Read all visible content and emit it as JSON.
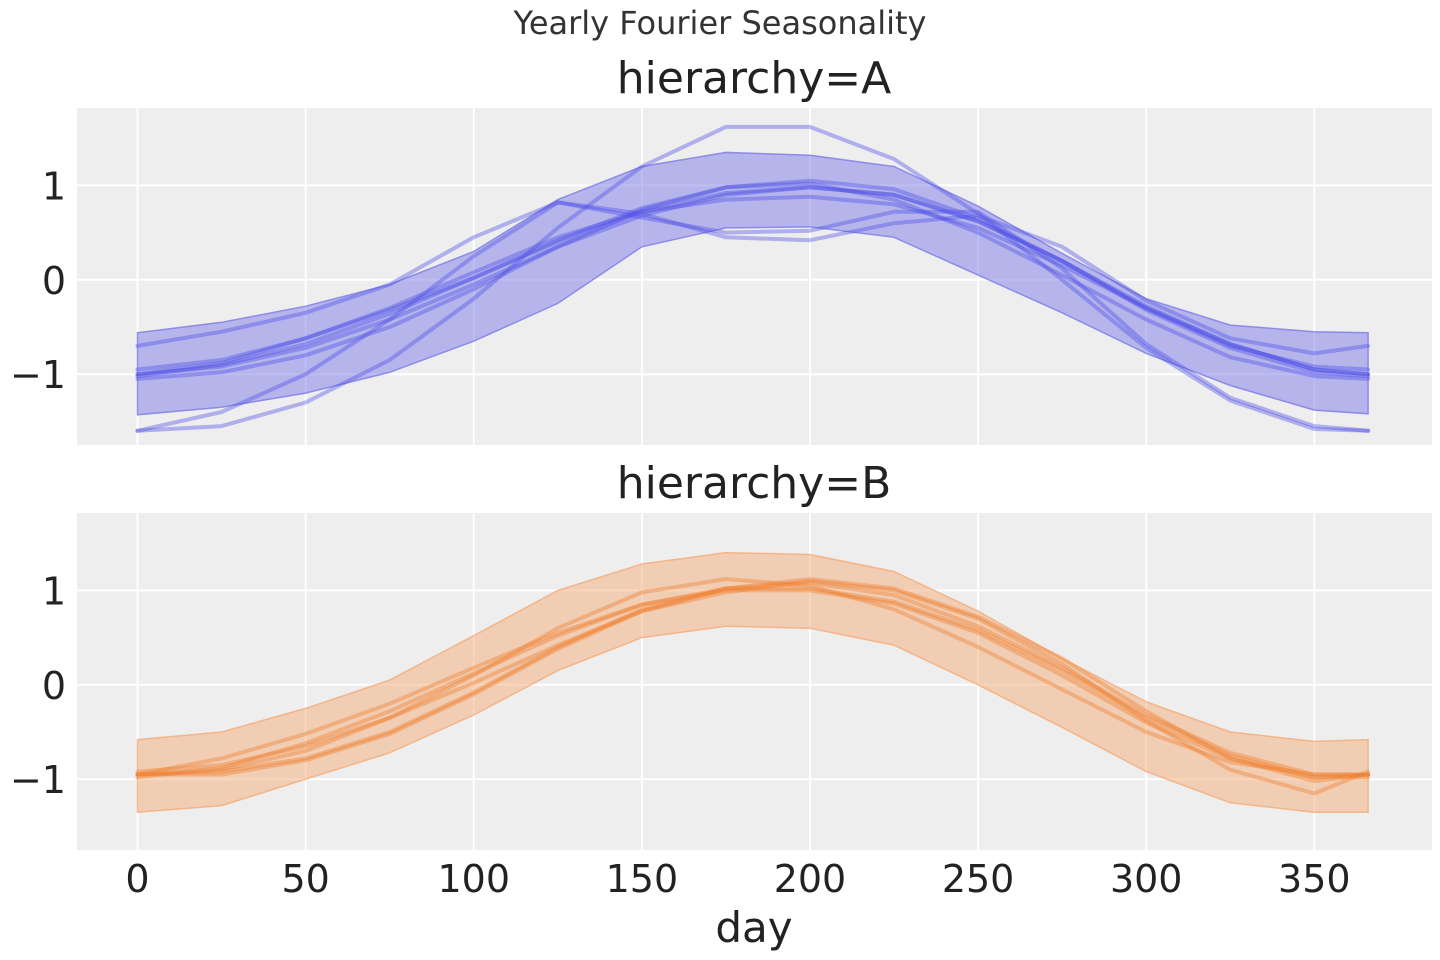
{
  "chart_data": {
    "type": "line",
    "title": "Yearly Fourier Seasonality",
    "xlabel": "day",
    "ylabel": "",
    "xlim": [
      -18,
      385
    ],
    "x_ticks": [
      0,
      50,
      100,
      150,
      200,
      250,
      300,
      350
    ],
    "x_tick_labels": [
      "0",
      "50",
      "100",
      "150",
      "200",
      "250",
      "300",
      "350"
    ],
    "y_ticks": [
      -1,
      0,
      1
    ],
    "y_tick_labels": [
      "−1",
      "0",
      "1"
    ],
    "ylim": [
      -1.75,
      1.82
    ],
    "grid": true,
    "background": "#eeeeee",
    "grid_color": "#ffffff",
    "panels": [
      {
        "title": "hierarchy=A",
        "color": "#5050e8",
        "band_color": "#7b7be8",
        "band": {
          "x": [
            0,
            25,
            50,
            75,
            100,
            125,
            150,
            175,
            200,
            225,
            250,
            275,
            300,
            325,
            350,
            366
          ],
          "lower": [
            -1.43,
            -1.35,
            -1.2,
            -0.98,
            -0.65,
            -0.25,
            0.35,
            0.55,
            0.56,
            0.45,
            0.05,
            -0.35,
            -0.78,
            -1.12,
            -1.38,
            -1.42
          ],
          "upper": [
            -0.56,
            -0.45,
            -0.28,
            -0.05,
            0.3,
            0.85,
            1.2,
            1.35,
            1.32,
            1.2,
            0.78,
            0.28,
            -0.2,
            -0.48,
            -0.55,
            -0.56
          ]
        },
        "samples": [
          {
            "x": [
              0,
              25,
              50,
              75,
              100,
              125,
              150,
              175,
              200,
              225,
              250,
              275,
              300,
              325,
              350,
              366
            ],
            "y": [
              -1.0,
              -0.92,
              -0.72,
              -0.42,
              -0.05,
              0.35,
              0.68,
              0.9,
              0.98,
              0.9,
              0.62,
              0.2,
              -0.28,
              -0.68,
              -0.95,
              -1.0
            ]
          },
          {
            "x": [
              0,
              25,
              50,
              75,
              100,
              125,
              150,
              175,
              200,
              225,
              250,
              275,
              300,
              325,
              350,
              366
            ],
            "y": [
              -1.02,
              -0.9,
              -0.68,
              -0.36,
              0.02,
              0.42,
              0.76,
              0.98,
              1.05,
              0.96,
              0.65,
              0.2,
              -0.32,
              -0.72,
              -0.98,
              -1.02
            ]
          },
          {
            "x": [
              0,
              25,
              50,
              75,
              100,
              125,
              150,
              175,
              200,
              225,
              250,
              275,
              300,
              325,
              350,
              366
            ],
            "y": [
              -1.6,
              -1.55,
              -1.3,
              -0.85,
              -0.2,
              0.55,
              1.2,
              1.62,
              1.62,
              1.28,
              0.7,
              0.0,
              -0.72,
              -1.28,
              -1.58,
              -1.6
            ]
          },
          {
            "x": [
              0,
              25,
              50,
              75,
              100,
              125,
              150,
              175,
              200,
              225,
              250,
              275,
              300,
              325,
              350,
              366
            ],
            "y": [
              -0.7,
              -0.55,
              -0.35,
              -0.05,
              0.45,
              0.82,
              0.7,
              0.45,
              0.42,
              0.6,
              0.68,
              0.35,
              -0.22,
              -0.62,
              -0.78,
              -0.7
            ]
          },
          {
            "x": [
              0,
              25,
              50,
              75,
              100,
              125,
              150,
              175,
              200,
              225,
              250,
              275,
              300,
              325,
              350,
              366
            ],
            "y": [
              -1.6,
              -1.4,
              -1.0,
              -0.42,
              0.25,
              0.82,
              0.66,
              0.5,
              0.52,
              0.72,
              0.72,
              0.12,
              -0.68,
              -1.25,
              -1.55,
              -1.6
            ]
          },
          {
            "x": [
              0,
              25,
              50,
              75,
              100,
              125,
              150,
              175,
              200,
              225,
              250,
              275,
              300,
              325,
              350,
              366
            ],
            "y": [
              -1.0,
              -0.88,
              -0.62,
              -0.3,
              0.08,
              0.45,
              0.72,
              0.85,
              0.88,
              0.8,
              0.55,
              0.15,
              -0.3,
              -0.68,
              -0.95,
              -1.0
            ]
          },
          {
            "x": [
              0,
              25,
              50,
              75,
              100,
              125,
              150,
              175,
              200,
              225,
              250,
              275,
              300,
              325,
              350,
              366
            ],
            "y": [
              -1.05,
              -0.98,
              -0.8,
              -0.5,
              -0.1,
              0.35,
              0.74,
              0.98,
              1.02,
              0.85,
              0.5,
              0.05,
              -0.42,
              -0.82,
              -1.02,
              -1.05
            ]
          },
          {
            "x": [
              0,
              25,
              50,
              75,
              100,
              125,
              150,
              175,
              200,
              225,
              250,
              275,
              300,
              325,
              350,
              366
            ],
            "y": [
              -0.95,
              -0.85,
              -0.62,
              -0.32,
              0.02,
              0.4,
              0.72,
              0.92,
              0.98,
              0.9,
              0.62,
              0.2,
              -0.3,
              -0.7,
              -0.92,
              -0.95
            ]
          }
        ]
      },
      {
        "title": "hierarchy=B",
        "color": "#f08030",
        "band_color": "#f4ab78",
        "band": {
          "x": [
            0,
            25,
            50,
            75,
            100,
            125,
            150,
            175,
            200,
            225,
            250,
            275,
            300,
            325,
            350,
            366
          ],
          "lower": [
            -1.35,
            -1.28,
            -1.0,
            -0.72,
            -0.32,
            0.15,
            0.5,
            0.62,
            0.6,
            0.42,
            0.0,
            -0.45,
            -0.92,
            -1.25,
            -1.35,
            -1.35
          ],
          "upper": [
            -0.58,
            -0.5,
            -0.25,
            0.05,
            0.52,
            1.0,
            1.28,
            1.4,
            1.38,
            1.2,
            0.78,
            0.28,
            -0.18,
            -0.5,
            -0.6,
            -0.58
          ]
        },
        "samples": [
          {
            "x": [
              0,
              25,
              50,
              75,
              100,
              125,
              150,
              175,
              200,
              225,
              250,
              275,
              300,
              325,
              350,
              366
            ],
            "y": [
              -0.95,
              -0.9,
              -0.7,
              -0.35,
              0.1,
              0.6,
              0.98,
              1.12,
              1.05,
              0.8,
              0.4,
              -0.05,
              -0.5,
              -0.82,
              -0.95,
              -0.95
            ]
          },
          {
            "x": [
              0,
              25,
              50,
              75,
              100,
              125,
              150,
              175,
              200,
              225,
              250,
              275,
              300,
              325,
              350,
              366
            ],
            "y": [
              -0.95,
              -0.92,
              -0.78,
              -0.5,
              -0.08,
              0.4,
              0.8,
              1.02,
              1.08,
              0.95,
              0.62,
              0.18,
              -0.32,
              -0.72,
              -0.95,
              -0.95
            ]
          },
          {
            "x": [
              0,
              25,
              50,
              75,
              100,
              125,
              150,
              175,
              200,
              225,
              250,
              275,
              300,
              325,
              350,
              366
            ],
            "y": [
              -0.95,
              -0.78,
              -0.52,
              -0.2,
              0.18,
              0.55,
              0.85,
              1.0,
              1.0,
              0.86,
              0.55,
              0.1,
              -0.4,
              -0.78,
              -0.98,
              -0.95
            ]
          },
          {
            "x": [
              0,
              25,
              50,
              75,
              100,
              125,
              150,
              175,
              200,
              225,
              250,
              275,
              300,
              325,
              350,
              366
            ],
            "y": [
              -0.92,
              -0.85,
              -0.65,
              -0.35,
              0.02,
              0.42,
              0.78,
              0.98,
              1.1,
              1.0,
              0.7,
              0.22,
              -0.38,
              -0.9,
              -1.15,
              -0.92
            ]
          },
          {
            "x": [
              0,
              25,
              50,
              75,
              100,
              125,
              150,
              175,
              200,
              225,
              250,
              275,
              300,
              325,
              350,
              366
            ],
            "y": [
              -0.95,
              -0.95,
              -0.8,
              -0.52,
              -0.1,
              0.38,
              0.78,
              1.02,
              1.12,
              1.02,
              0.72,
              0.28,
              -0.28,
              -0.78,
              -1.02,
              -0.95
            ]
          },
          {
            "x": [
              0,
              25,
              50,
              75,
              100,
              125,
              150,
              175,
              200,
              225,
              250,
              275,
              300,
              325,
              350,
              366
            ],
            "y": [
              -0.98,
              -0.88,
              -0.62,
              -0.28,
              0.12,
              0.52,
              0.85,
              1.02,
              1.02,
              0.88,
              0.58,
              0.15,
              -0.35,
              -0.75,
              -0.98,
              -0.98
            ]
          }
        ]
      }
    ]
  }
}
